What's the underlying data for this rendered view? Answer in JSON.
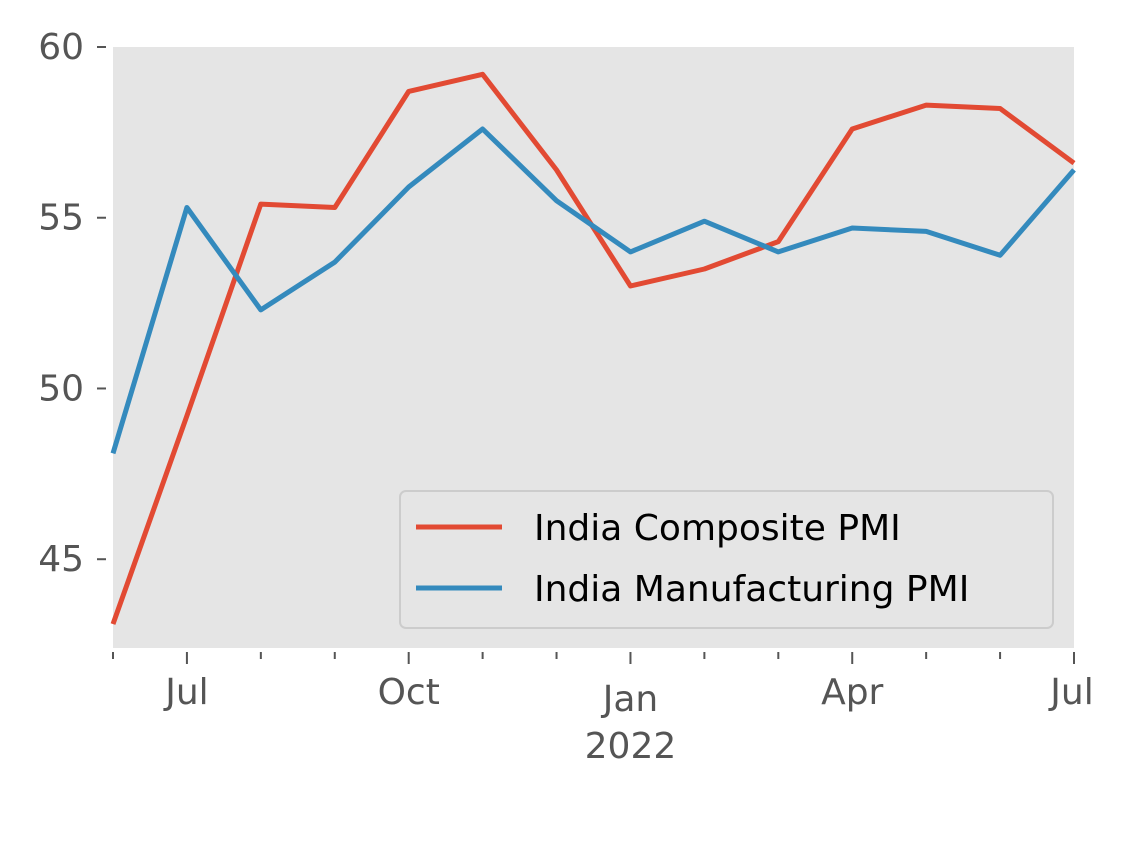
{
  "chart_data": {
    "type": "line",
    "x": [
      "2021-06",
      "2021-07",
      "2021-08",
      "2021-09",
      "2021-10",
      "2021-11",
      "2021-12",
      "2022-01",
      "2022-02",
      "2022-03",
      "2022-04",
      "2022-05",
      "2022-06",
      "2022-07"
    ],
    "series": [
      {
        "name": "India Composite PMI",
        "color": "#E24A33",
        "values": [
          43.1,
          49.2,
          55.4,
          55.3,
          58.7,
          59.2,
          56.4,
          53.0,
          53.5,
          54.3,
          57.6,
          58.3,
          58.2,
          56.6
        ]
      },
      {
        "name": "India Manufacturing PMI",
        "color": "#348ABD",
        "values": [
          48.1,
          55.3,
          52.3,
          53.7,
          55.9,
          57.6,
          55.5,
          54.0,
          54.9,
          54.0,
          54.7,
          54.6,
          53.9,
          56.4
        ]
      }
    ],
    "ylim": [
      42.4,
      60.0
    ],
    "yticks": [
      "45",
      "50",
      "55",
      "60"
    ],
    "xticks": [
      {
        "at": "2021-07",
        "label": "Jul"
      },
      {
        "at": "2021-10",
        "label": "Oct"
      },
      {
        "at": "2022-01",
        "label": "Jan"
      },
      {
        "at": "2022-04",
        "label": "Apr"
      },
      {
        "at": "2022-07",
        "label": "Jul"
      }
    ],
    "year_label": {
      "at": "2022-01",
      "label": "2022"
    },
    "grid": false,
    "legend": "bottom-right",
    "background": "#E5E5E5"
  }
}
